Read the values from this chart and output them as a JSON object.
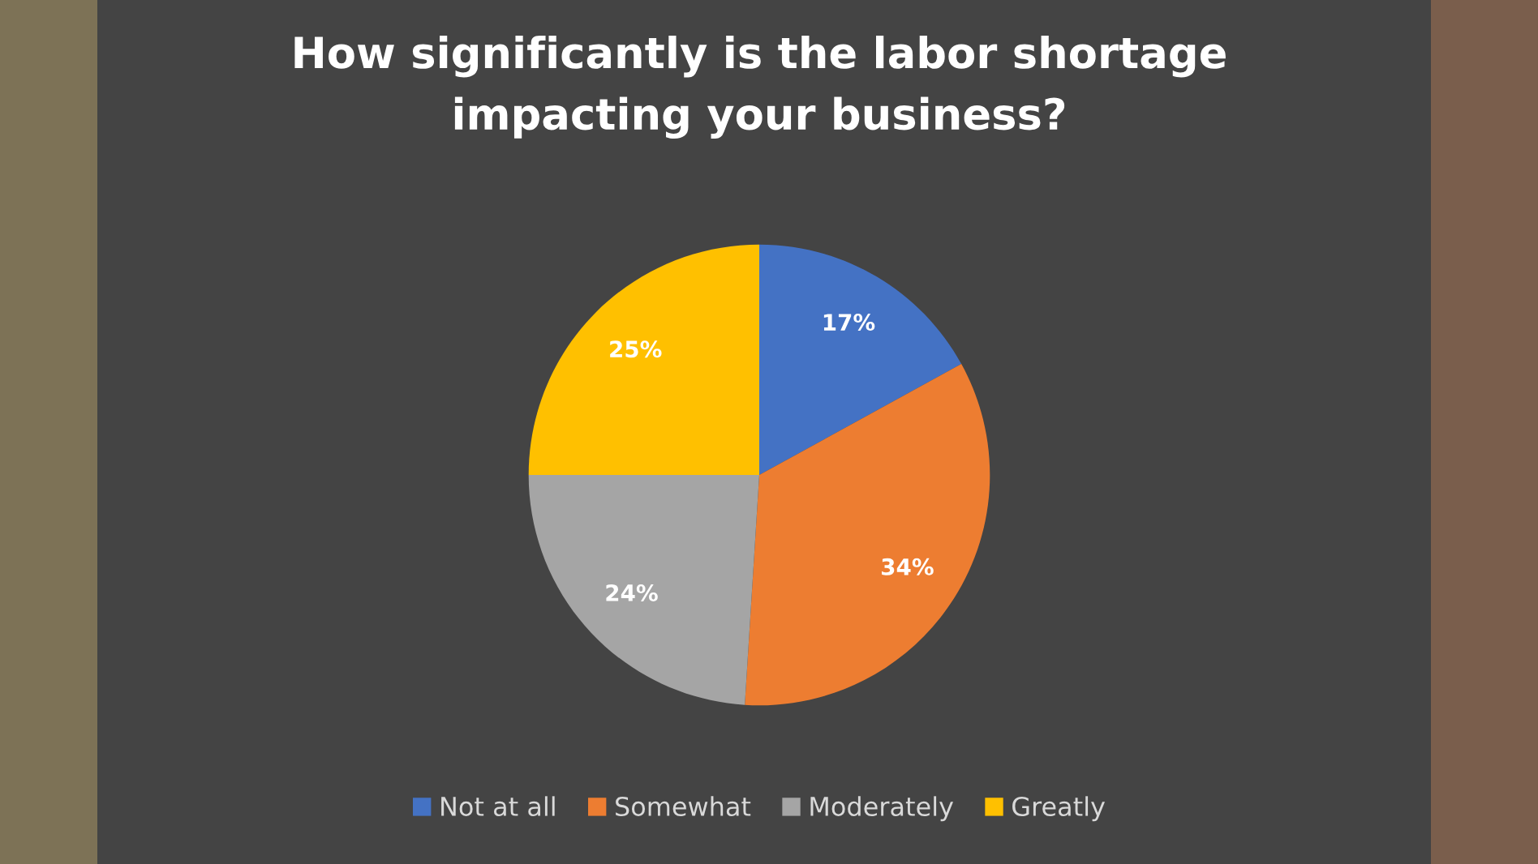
{
  "chart_data": {
    "type": "pie",
    "title": "How significantly is the labor shortage impacting your business?",
    "categories": [
      "Not at all",
      "Somewhat",
      "Moderately",
      "Greatly"
    ],
    "values": [
      17,
      34,
      24,
      25
    ],
    "colors": [
      "#4472c4",
      "#ed7d31",
      "#a5a5a5",
      "#ffc000"
    ],
    "value_labels": [
      "17%",
      "34%",
      "24%",
      "25%"
    ],
    "legend": "bottom"
  }
}
